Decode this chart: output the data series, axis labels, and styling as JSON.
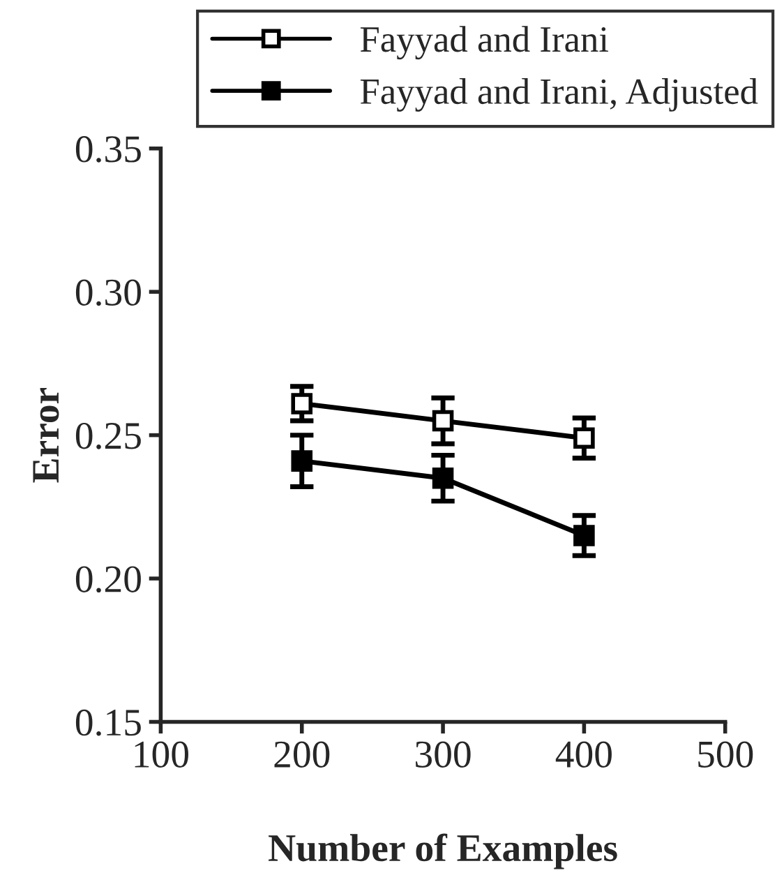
{
  "chart_data": {
    "type": "line",
    "xlabel": "Number of Examples",
    "ylabel": "Error",
    "x": [
      200,
      300,
      400
    ],
    "series": [
      {
        "name": "Fayyad and Irani",
        "color": "#000000",
        "values": [
          0.261,
          0.255,
          0.249
        ],
        "errors": [
          0.006,
          0.008,
          0.007
        ]
      },
      {
        "name": "Fayyad and Irani, Adjusted",
        "color": "#000000",
        "values": [
          0.241,
          0.235,
          0.215
        ],
        "errors": [
          0.009,
          0.008,
          0.007
        ]
      }
    ],
    "xlim": [
      100,
      500
    ],
    "xticks": [
      100,
      200,
      300,
      400,
      500
    ],
    "ylim": [
      0.15,
      0.35
    ],
    "yticks": [
      {
        "value": 0.15,
        "label": "0.15"
      },
      {
        "value": 0.2,
        "label": "0.20"
      },
      {
        "value": 0.25,
        "label": "0.25"
      },
      {
        "value": 0.3,
        "label": "0.30"
      },
      {
        "value": 0.35,
        "label": "0.35"
      }
    ],
    "marker": "square",
    "line_style": "solid",
    "legend": "top",
    "grid": false
  }
}
